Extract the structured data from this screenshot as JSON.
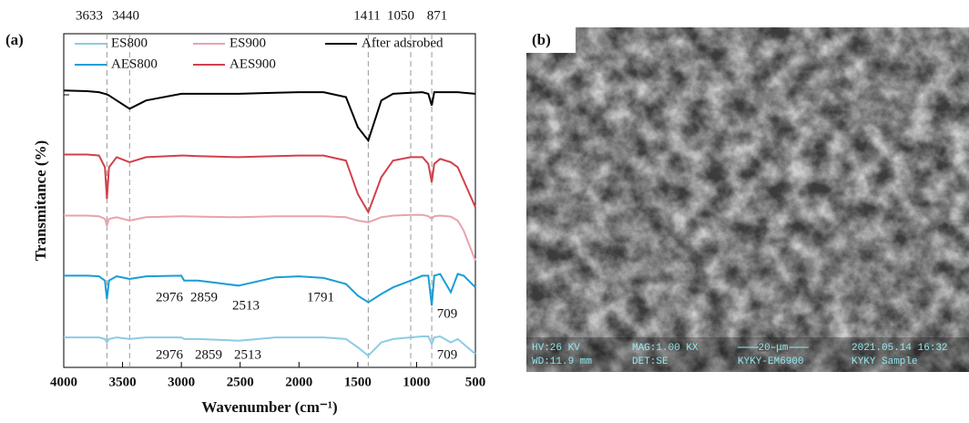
{
  "chart_data": {
    "type": "line",
    "panel_label": "(a)",
    "x_label": "Wavenumber (cm⁻¹)",
    "y_label": "Transmitance (%)",
    "xlim": [
      4000,
      500
    ],
    "xticks": [
      4000,
      3500,
      3000,
      2500,
      2000,
      1500,
      1000,
      500
    ],
    "ylim": [
      0,
      100
    ],
    "reference_lines": [
      3633,
      3440,
      1411,
      1050,
      871
    ],
    "x": [
      4000,
      3800,
      3700,
      3650,
      3633,
      3615,
      3550,
      3440,
      3300,
      3000,
      2976,
      2859,
      2513,
      2200,
      2000,
      1791,
      1600,
      1500,
      1411,
      1300,
      1200,
      1050,
      950,
      900,
      871,
      850,
      800,
      709,
      650,
      600,
      500
    ],
    "series": [
      {
        "name": "ES800",
        "color": "#8ccbe6",
        "values": [
          9,
          9,
          9,
          8.5,
          7.5,
          8.5,
          9,
          8.5,
          9,
          9,
          8.5,
          8.5,
          8,
          9,
          9,
          9,
          8.5,
          6,
          3.5,
          7.5,
          8.5,
          9,
          9.3,
          9.3,
          7,
          9,
          9.3,
          7.5,
          8.5,
          7,
          4
        ]
      },
      {
        "name": "AES800",
        "color": "#1a9ed6",
        "values": [
          27.5,
          27.5,
          27.3,
          26,
          20.5,
          26,
          27.3,
          26.5,
          27.3,
          27.5,
          26,
          26,
          24.5,
          27,
          27.3,
          26.8,
          25,
          21.5,
          19.5,
          22,
          24,
          26,
          27.5,
          27.5,
          18.5,
          27.5,
          28,
          22.5,
          28,
          27.5,
          24
        ]
      },
      {
        "name": "ES900",
        "color": "#e8a3ad",
        "values": [
          45.5,
          45.5,
          45.3,
          44.5,
          42.5,
          44.5,
          45,
          44,
          45,
          45.3,
          45.3,
          45.2,
          45,
          45.3,
          45.3,
          45.3,
          45,
          44,
          43.5,
          45,
          45.5,
          45.7,
          45.7,
          45.3,
          44.5,
          45.3,
          45.5,
          45.2,
          44,
          41,
          32
        ]
      },
      {
        "name": "AES900",
        "color": "#d2404c",
        "values": [
          63.8,
          63.8,
          63.5,
          60,
          50.5,
          60,
          63,
          61.5,
          63,
          63.5,
          63.5,
          63.3,
          63,
          63.3,
          63.5,
          63.5,
          62,
          52,
          46.5,
          57,
          62,
          63,
          63,
          61,
          55.5,
          61,
          62.5,
          61.5,
          60,
          56,
          48
        ]
      },
      {
        "name": "After adsrobed",
        "color": "#000000",
        "values": [
          83,
          82.8,
          82.5,
          82,
          81.8,
          81.5,
          80,
          77.5,
          80,
          82,
          82,
          82,
          82,
          82.3,
          82.5,
          82.5,
          81,
          72,
          68,
          80,
          82,
          82.3,
          82.5,
          82,
          78.5,
          82.5,
          82.5,
          82.5,
          82.5,
          82.3,
          82
        ]
      }
    ],
    "annotations": [
      "2976",
      "2859",
      "2513",
      "1791",
      "709",
      "2976",
      "2859",
      "2513",
      "709"
    ]
  },
  "panel_b": {
    "label": "(b)",
    "info": [
      "HV:26 KV",
      "WD:11.9 mm",
      "MAG:1.00 KX",
      "DET:SE",
      "20 μm",
      "KYKY-EM6900",
      "2021.05.14 16:32",
      "KYKY Sample"
    ]
  }
}
